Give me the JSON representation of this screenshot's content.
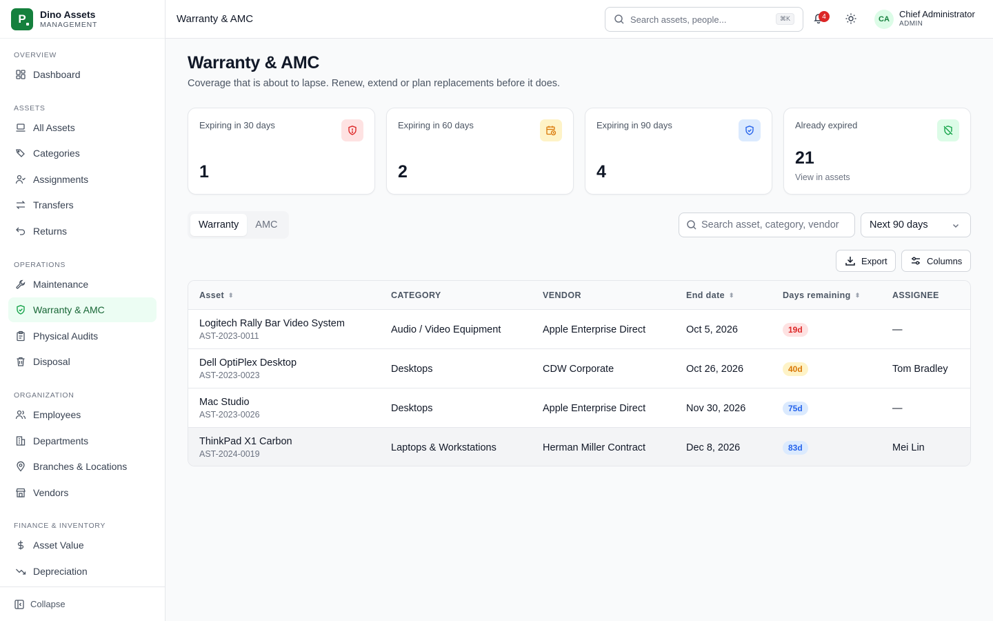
{
  "brand": {
    "name": "Dino Assets",
    "subtitle": "MANAGEMENT",
    "logo_letter": "P"
  },
  "sidebar": {
    "sections": [
      {
        "title": "OVERVIEW",
        "items": [
          {
            "label": "Dashboard",
            "icon": "dashboard-icon"
          }
        ]
      },
      {
        "title": "ASSETS",
        "items": [
          {
            "label": "All Assets",
            "icon": "laptop-icon"
          },
          {
            "label": "Categories",
            "icon": "tags-icon"
          },
          {
            "label": "Assignments",
            "icon": "user-check-icon"
          },
          {
            "label": "Transfers",
            "icon": "arrows-icon"
          },
          {
            "label": "Returns",
            "icon": "undo-icon"
          }
        ]
      },
      {
        "title": "OPERATIONS",
        "items": [
          {
            "label": "Maintenance",
            "icon": "wrench-icon"
          },
          {
            "label": "Warranty & AMC",
            "icon": "shield-check-icon",
            "active": true
          },
          {
            "label": "Physical Audits",
            "icon": "clipboard-icon"
          },
          {
            "label": "Disposal",
            "icon": "trash-icon"
          }
        ]
      },
      {
        "title": "ORGANIZATION",
        "items": [
          {
            "label": "Employees",
            "icon": "users-icon"
          },
          {
            "label": "Departments",
            "icon": "building-icon"
          },
          {
            "label": "Branches & Locations",
            "icon": "map-pin-icon"
          },
          {
            "label": "Vendors",
            "icon": "store-icon"
          }
        ]
      },
      {
        "title": "FINANCE & INVENTORY",
        "items": [
          {
            "label": "Asset Value",
            "icon": "dollar-icon"
          },
          {
            "label": "Depreciation",
            "icon": "trending-down-icon"
          }
        ]
      }
    ],
    "collapse_label": "Collapse"
  },
  "header": {
    "title": "Warranty & AMC",
    "search_placeholder": "Search assets, people...",
    "search_shortcut": "⌘K",
    "notification_count": "4",
    "user": {
      "initials": "CA",
      "name": "Chief Administrator",
      "role": "ADMIN"
    }
  },
  "page": {
    "title": "Warranty & AMC",
    "subtitle": "Coverage that is about to lapse. Renew, extend or plan replacements before it does."
  },
  "stats": [
    {
      "label": "Expiring in 30 days",
      "value": "1",
      "icon": "shield-alert-icon",
      "color": "#dc2626",
      "bg": "#fee2e2"
    },
    {
      "label": "Expiring in 60 days",
      "value": "2",
      "icon": "calendar-clock-icon",
      "color": "#d97706",
      "bg": "#fef3c7"
    },
    {
      "label": "Expiring in 90 days",
      "value": "4",
      "icon": "shield-check-icon",
      "color": "#2563eb",
      "bg": "#dbeafe"
    },
    {
      "label": "Already expired",
      "value": "21",
      "link": "View in assets",
      "icon": "shield-off-icon",
      "color": "#16a34a",
      "bg": "#dcfce7"
    }
  ],
  "tabs": [
    {
      "label": "Warranty",
      "active": true
    },
    {
      "label": "AMC"
    }
  ],
  "filters": {
    "search_placeholder": "Search asset, category, vendor",
    "range": "Next 90 days"
  },
  "actions": {
    "export": "Export",
    "columns": "Columns"
  },
  "table": {
    "columns": [
      "Asset",
      "CATEGORY",
      "VENDOR",
      "End date",
      "Days remaining",
      "ASSIGNEE"
    ],
    "rows": [
      {
        "name": "Logitech Rally Bar Video System",
        "tag": "AST-2023-0011",
        "category": "Audio / Video Equipment",
        "vendor": "Apple Enterprise Direct",
        "end_date": "Oct 5, 2026",
        "days": "19d",
        "level": "red",
        "assignee": "—"
      },
      {
        "name": "Dell OptiPlex Desktop",
        "tag": "AST-2023-0023",
        "category": "Desktops",
        "vendor": "CDW Corporate",
        "end_date": "Oct 26, 2026",
        "days": "40d",
        "level": "amber",
        "assignee": "Tom Bradley"
      },
      {
        "name": "Mac Studio",
        "tag": "AST-2023-0026",
        "category": "Desktops",
        "vendor": "Apple Enterprise Direct",
        "end_date": "Nov 30, 2026",
        "days": "75d",
        "level": "blue",
        "assignee": "—"
      },
      {
        "name": "ThinkPad X1 Carbon",
        "tag": "AST-2024-0019",
        "category": "Laptops & Workstations",
        "vendor": "Herman Miller Contract",
        "end_date": "Dec 8, 2026",
        "days": "83d",
        "level": "blue",
        "assignee": "Mei Lin"
      }
    ]
  },
  "pill_colors": {
    "red": {
      "bg": "#fee2e2",
      "fg": "#dc2626"
    },
    "amber": {
      "bg": "#fef3c7",
      "fg": "#d97706"
    },
    "blue": {
      "bg": "#dbeafe",
      "fg": "#2563eb"
    }
  }
}
